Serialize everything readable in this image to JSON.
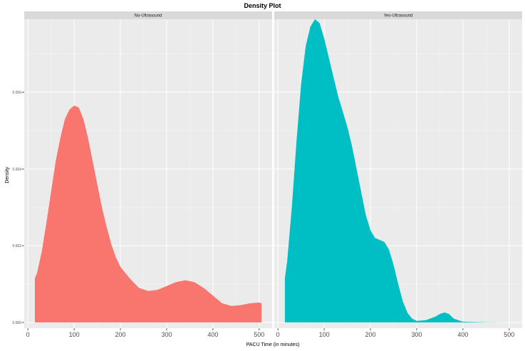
{
  "chart_data": {
    "type": "area",
    "title": "Density Plot",
    "xlabel": "PACU Time (in minutes)",
    "ylabel": "Density",
    "xlim": [
      -8,
      528
    ],
    "ylim": [
      -0.00015,
      0.0079
    ],
    "x_ticks": [
      "0",
      "100",
      "200",
      "300",
      "400",
      "500"
    ],
    "y_ticks": [
      "0.000",
      "0.002",
      "0.004",
      "0.006"
    ],
    "grid": true,
    "colors": {
      "No-Ultrasound": "#F8766D",
      "Yes-Ultrasound": "#00BFC4",
      "panel": "#EBEBEB",
      "strip": "#D9D9D9"
    },
    "panels": [
      {
        "label": "No-Ultrasound",
        "series": [
          {
            "name": "No-Ultrasound",
            "x": [
              15,
              20,
              30,
              40,
              50,
              60,
              70,
              80,
              90,
              100,
              110,
              120,
              130,
              140,
              150,
              160,
              170,
              180,
              190,
              200,
              220,
              240,
              260,
              280,
              300,
              320,
              340,
              360,
              380,
              400,
              420,
              440,
              460,
              480,
              500,
              505
            ],
            "y": [
              0.00115,
              0.0013,
              0.00185,
              0.0026,
              0.0034,
              0.0042,
              0.0048,
              0.0053,
              0.00555,
              0.00565,
              0.0056,
              0.0053,
              0.0048,
              0.0042,
              0.0036,
              0.003,
              0.0025,
              0.00205,
              0.0017,
              0.00145,
              0.00115,
              0.0009,
              0.00082,
              0.00085,
              0.00095,
              0.00105,
              0.0011,
              0.00105,
              0.0009,
              0.0007,
              0.0005,
              0.00043,
              0.00045,
              0.0005,
              0.00052,
              0.0005
            ]
          }
        ]
      },
      {
        "label": "Yes-Ultrasound",
        "series": [
          {
            "name": "Yes-Ultrasound",
            "x": [
              15,
              20,
              30,
              40,
              50,
              60,
              70,
              80,
              90,
              100,
              110,
              120,
              130,
              140,
              150,
              160,
              170,
              180,
              190,
              200,
              210,
              220,
              230,
              240,
              250,
              260,
              270,
              280,
              290,
              300,
              320,
              340,
              350,
              360,
              370,
              380,
              400,
              450,
              505
            ],
            "y": [
              0.00115,
              0.0016,
              0.003,
              0.0047,
              0.0062,
              0.0072,
              0.0077,
              0.0079,
              0.0078,
              0.0074,
              0.0069,
              0.0064,
              0.0059,
              0.0055,
              0.0051,
              0.0046,
              0.004,
              0.0034,
              0.0028,
              0.0024,
              0.0022,
              0.00215,
              0.0021,
              0.0019,
              0.0015,
              0.001,
              0.00055,
              0.00025,
              0.0001,
              4e-05,
              6e-05,
              0.00015,
              0.00022,
              0.00026,
              0.00022,
              0.0001,
              2e-05,
              5e-06,
              0.0
            ]
          }
        ]
      }
    ]
  }
}
